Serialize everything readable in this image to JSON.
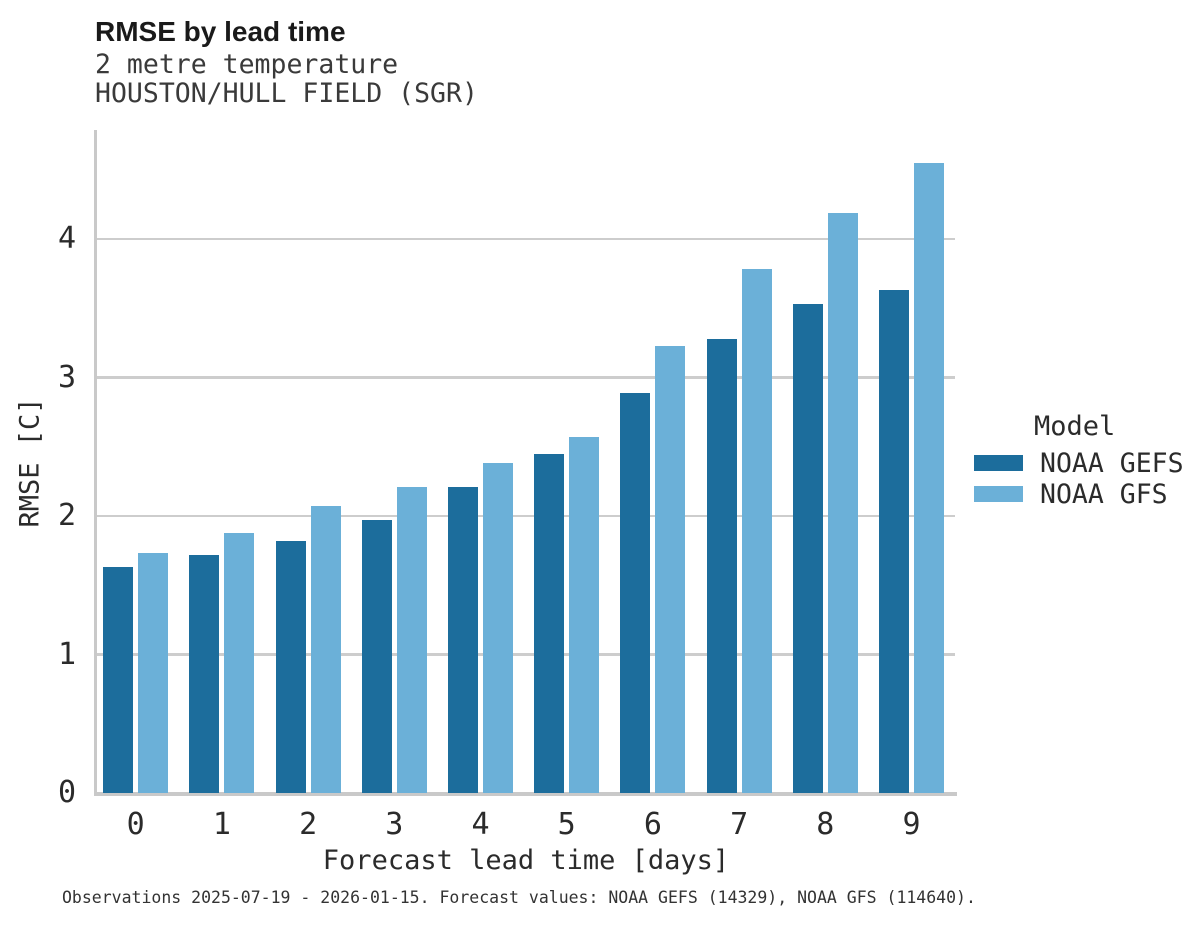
{
  "header": {
    "title": "RMSE by lead time",
    "subtitle_line1": "2 metre temperature",
    "subtitle_line2": "HOUSTON/HULL FIELD (SGR)"
  },
  "chart_data": {
    "type": "bar",
    "title": "RMSE by lead time",
    "subtitle": [
      "2 metre temperature",
      "HOUSTON/HULL FIELD (SGR)"
    ],
    "categories": [
      "0",
      "1",
      "2",
      "3",
      "4",
      "5",
      "6",
      "7",
      "8",
      "9"
    ],
    "series": [
      {
        "name": "NOAA GEFS",
        "color": "#1c6d9c",
        "values": [
          1.63,
          1.72,
          1.82,
          1.97,
          2.21,
          2.45,
          2.89,
          3.28,
          3.53,
          3.63
        ]
      },
      {
        "name": "NOAA GFS",
        "color": "#6bb0d8",
        "values": [
          1.73,
          1.88,
          2.07,
          2.21,
          2.38,
          2.57,
          3.23,
          3.78,
          4.19,
          4.55
        ]
      }
    ],
    "xlabel": "Forecast lead time [days]",
    "ylabel": "RMSE [C]",
    "ylim": [
      0,
      4.79
    ],
    "yticks": [
      0,
      1,
      2,
      3,
      4
    ],
    "grid": true,
    "legend_title": "Model",
    "legend_position": "right",
    "gridline_color": "#cdcdcd",
    "axis_color": "#c9c9c9"
  },
  "footer": {
    "text": "Observations 2025-07-19 - 2026-01-15. Forecast values: NOAA GEFS (14329), NOAA GFS (114640)."
  }
}
